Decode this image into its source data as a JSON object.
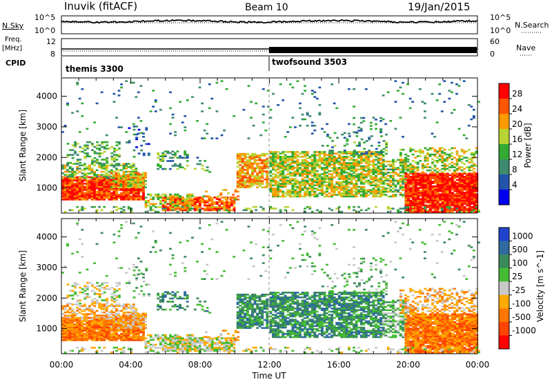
{
  "header": {
    "station": "Inuvik (fitACF)",
    "beam": "Beam 10",
    "date": "19/Jan/2015"
  },
  "panels": {
    "nsky_label": "N.Sky",
    "nsearch_label": "N.Search",
    "nsky_ticks": [
      "10^5",
      "10^0"
    ],
    "nsearch_ticks": [
      "10^5",
      "10^0"
    ],
    "freq_label_1": "Freq.",
    "freq_label_2": "[MHz]",
    "freq_ticks": [
      "12",
      "8"
    ],
    "nave_label": "Nave",
    "nave_ticks": [
      "60",
      "0"
    ],
    "cpid_label": "CPID",
    "cpid_1": "themis 3300",
    "cpid_2": "twofsound 3503"
  },
  "colors": {
    "power": [
      "#0000ee",
      "#2255aa",
      "#3d8a6e",
      "#33aa33",
      "#b8d433",
      "#ff9900",
      "#ff5500",
      "#ff0000"
    ],
    "velocity": [
      "#2244cc",
      "#2e6b9e",
      "#3a8a5a",
      "#44bb33",
      "#c8c8c8",
      "#ffaa00",
      "#ff7700",
      "#ff4400",
      "#ff0000"
    ]
  },
  "chart_data": [
    {
      "type": "heatmap",
      "xlabel": "Time UT",
      "ylabel": "Slant Range [km]",
      "xlim": [
        0,
        24
      ],
      "ylim": [
        180,
        4600
      ],
      "xticks": [
        "00:00",
        "04:00",
        "08:00",
        "12:00",
        "16:00",
        "20:00",
        "00:00"
      ],
      "yticks": [
        1000,
        2000,
        3000,
        4000
      ],
      "colorbar_label": "Power [dB]",
      "colorbar_ticks": [
        "4",
        "8",
        "12",
        "16",
        "20",
        "24",
        "28"
      ],
      "colorbar_range": [
        0,
        32
      ]
    },
    {
      "type": "heatmap",
      "xlabel": "Time UT",
      "ylabel": "Slant Range [km]",
      "xlim": [
        0,
        24
      ],
      "ylim": [
        180,
        4600
      ],
      "xticks": [
        "00:00",
        "04:00",
        "08:00",
        "12:00",
        "16:00",
        "20:00",
        "00:00"
      ],
      "yticks": [
        1000,
        2000,
        3000,
        4000
      ],
      "colorbar_label": "Velocity [m s^-1]",
      "colorbar_ticks": [
        "1000",
        "500",
        "100",
        "25",
        "-25",
        "-100",
        "-500",
        "-1000"
      ]
    }
  ]
}
